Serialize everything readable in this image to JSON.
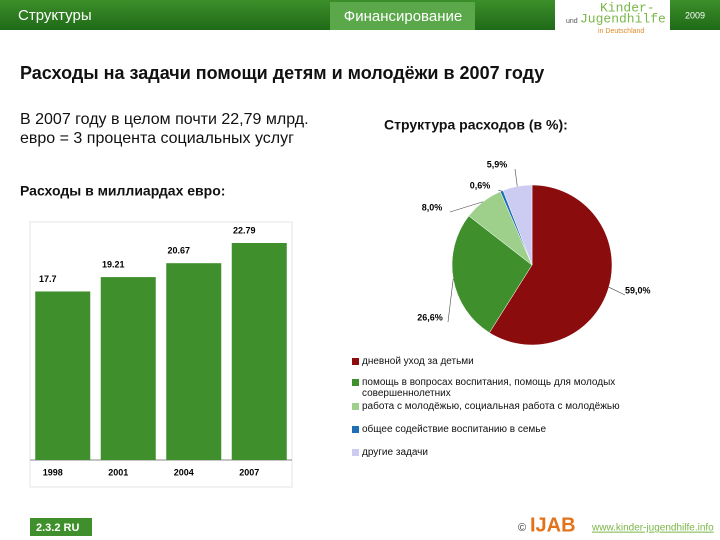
{
  "header": {
    "section": "Структуры",
    "tab": "Финансирование",
    "logo": [
      "Kinder-",
      "und",
      "Jugendhilfe",
      "in Deutschland"
    ],
    "year": "2009"
  },
  "title": "Расходы на задачи помощи детям и молодёжи в 2007 году",
  "intro": "В 2007 году в целом почти 22,79 млрд. евро = 3 процента социальных услуг",
  "chart_data": [
    {
      "type": "bar",
      "title": "Расходы в миллиардах евро:",
      "categories": [
        "1998",
        "2001",
        "2004",
        "2007"
      ],
      "values": [
        17.7,
        19.21,
        20.67,
        22.79
      ],
      "color": "#3f8f2c"
    },
    {
      "type": "pie",
      "title": "Структура расходов (в %):",
      "categories": [
        "дневной уход за детьми",
        "помощь в вопросах воспитания, помощь для молодых совершеннолетних",
        "работа с молодёжью, социальная работа с молодёжью",
        "общее содействие воспитанию в семье",
        "другие задачи"
      ],
      "values": [
        59.0,
        26.6,
        8.0,
        0.6,
        5.9
      ],
      "value_labels": [
        "59,0%",
        "26,6%",
        "8,0%",
        "0,6%",
        "5,9%"
      ],
      "colors": [
        "#8b0c0c",
        "#3f8f2c",
        "#9fd08b",
        "#1f6fb5",
        "#ccccf2"
      ]
    }
  ],
  "footer": {
    "code": "2.3.2 RU",
    "copyright": "©",
    "org": "IJAB",
    "url": "www.kinder-jugendhilfe.info"
  }
}
